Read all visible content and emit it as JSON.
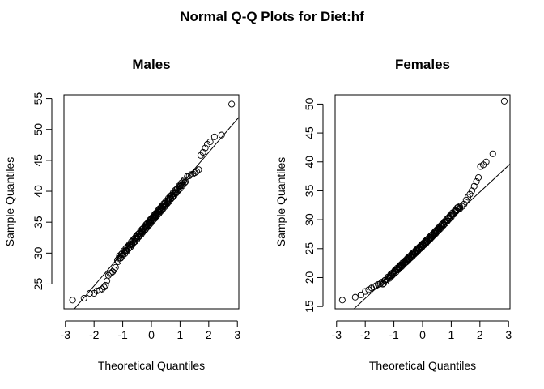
{
  "figure": {
    "title": "Normal Q-Q Plots for Diet:hf"
  },
  "chart_data": [
    {
      "type": "scatter",
      "subtype": "normal-qq",
      "title": "Males",
      "xlabel": "Theoretical Quantiles",
      "ylabel": "Sample Quantiles",
      "xlim": [
        -3.05,
        3.05
      ],
      "ylim": [
        21.0,
        55.6
      ],
      "xticks": [
        -3,
        -2,
        -1,
        0,
        1,
        2,
        3
      ],
      "yticks": [
        25,
        30,
        35,
        40,
        45,
        50,
        55
      ],
      "reference_line": {
        "intercept": 35.5,
        "slope": 5.4
      },
      "n_points": 200,
      "tail_points": [
        [
          -2.75,
          22.4
        ],
        [
          -2.35,
          22.7
        ],
        [
          -2.15,
          23.5
        ],
        [
          -2.0,
          23.5
        ],
        [
          -1.9,
          23.9
        ],
        [
          -1.8,
          24.0
        ],
        [
          -1.72,
          24.2
        ],
        [
          -1.65,
          24.5
        ],
        [
          -1.6,
          24.8
        ],
        [
          -1.55,
          25.5
        ],
        [
          -1.5,
          26.4
        ],
        [
          -1.45,
          26.7
        ],
        [
          -1.4,
          26.8
        ],
        [
          -1.35,
          27.0
        ],
        [
          -1.3,
          27.3
        ],
        [
          -1.25,
          27.7
        ],
        [
          1.25,
          42.4
        ],
        [
          1.32,
          42.5
        ],
        [
          1.38,
          42.7
        ],
        [
          1.45,
          42.8
        ],
        [
          1.52,
          43.0
        ],
        [
          1.58,
          43.2
        ],
        [
          1.65,
          43.5
        ],
        [
          1.72,
          45.8
        ],
        [
          1.8,
          46.3
        ],
        [
          1.88,
          47.0
        ],
        [
          1.95,
          47.6
        ],
        [
          2.05,
          48.0
        ],
        [
          2.2,
          48.8
        ],
        [
          2.45,
          49.1
        ],
        [
          2.8,
          54.1
        ]
      ],
      "bulk_fit": {
        "intercept": 35.3,
        "slope": 5.45,
        "x_range": [
          -1.2,
          1.2
        ],
        "wiggle": 0.35
      }
    },
    {
      "type": "scatter",
      "subtype": "normal-qq",
      "title": "Females",
      "xlabel": "Theoretical Quantiles",
      "ylabel": "Sample Quantiles",
      "xlim": [
        -3.05,
        3.05
      ],
      "ylim": [
        14.6,
        51.6
      ],
      "xticks": [
        -3,
        -2,
        -1,
        0,
        1,
        2,
        3
      ],
      "yticks": [
        15,
        20,
        25,
        30,
        35,
        40,
        45,
        50
      ],
      "reference_line": {
        "intercept": 25.6,
        "slope": 4.6
      },
      "n_points": 200,
      "tail_points": [
        [
          -2.8,
          16.1
        ],
        [
          -2.35,
          16.6
        ],
        [
          -2.15,
          17.0
        ],
        [
          -2.0,
          17.6
        ],
        [
          -1.88,
          17.9
        ],
        [
          -1.78,
          18.2
        ],
        [
          -1.7,
          18.4
        ],
        [
          -1.62,
          18.6
        ],
        [
          -1.55,
          18.8
        ],
        [
          -1.48,
          18.9
        ],
        [
          -1.42,
          19.2
        ],
        [
          1.3,
          31.9
        ],
        [
          1.38,
          32.3
        ],
        [
          1.45,
          32.7
        ],
        [
          1.52,
          33.4
        ],
        [
          1.58,
          33.9
        ],
        [
          1.65,
          34.4
        ],
        [
          1.72,
          35.0
        ],
        [
          1.8,
          35.8
        ],
        [
          1.88,
          36.6
        ],
        [
          1.95,
          37.3
        ],
        [
          2.02,
          39.2
        ],
        [
          2.12,
          39.5
        ],
        [
          2.22,
          40.0
        ],
        [
          2.45,
          41.4
        ],
        [
          2.85,
          50.5
        ]
      ],
      "bulk_fit": {
        "intercept": 25.6,
        "slope": 4.75,
        "x_range": [
          -1.4,
          1.3
        ],
        "wiggle": 0.25,
        "curve": 0.35
      }
    }
  ]
}
